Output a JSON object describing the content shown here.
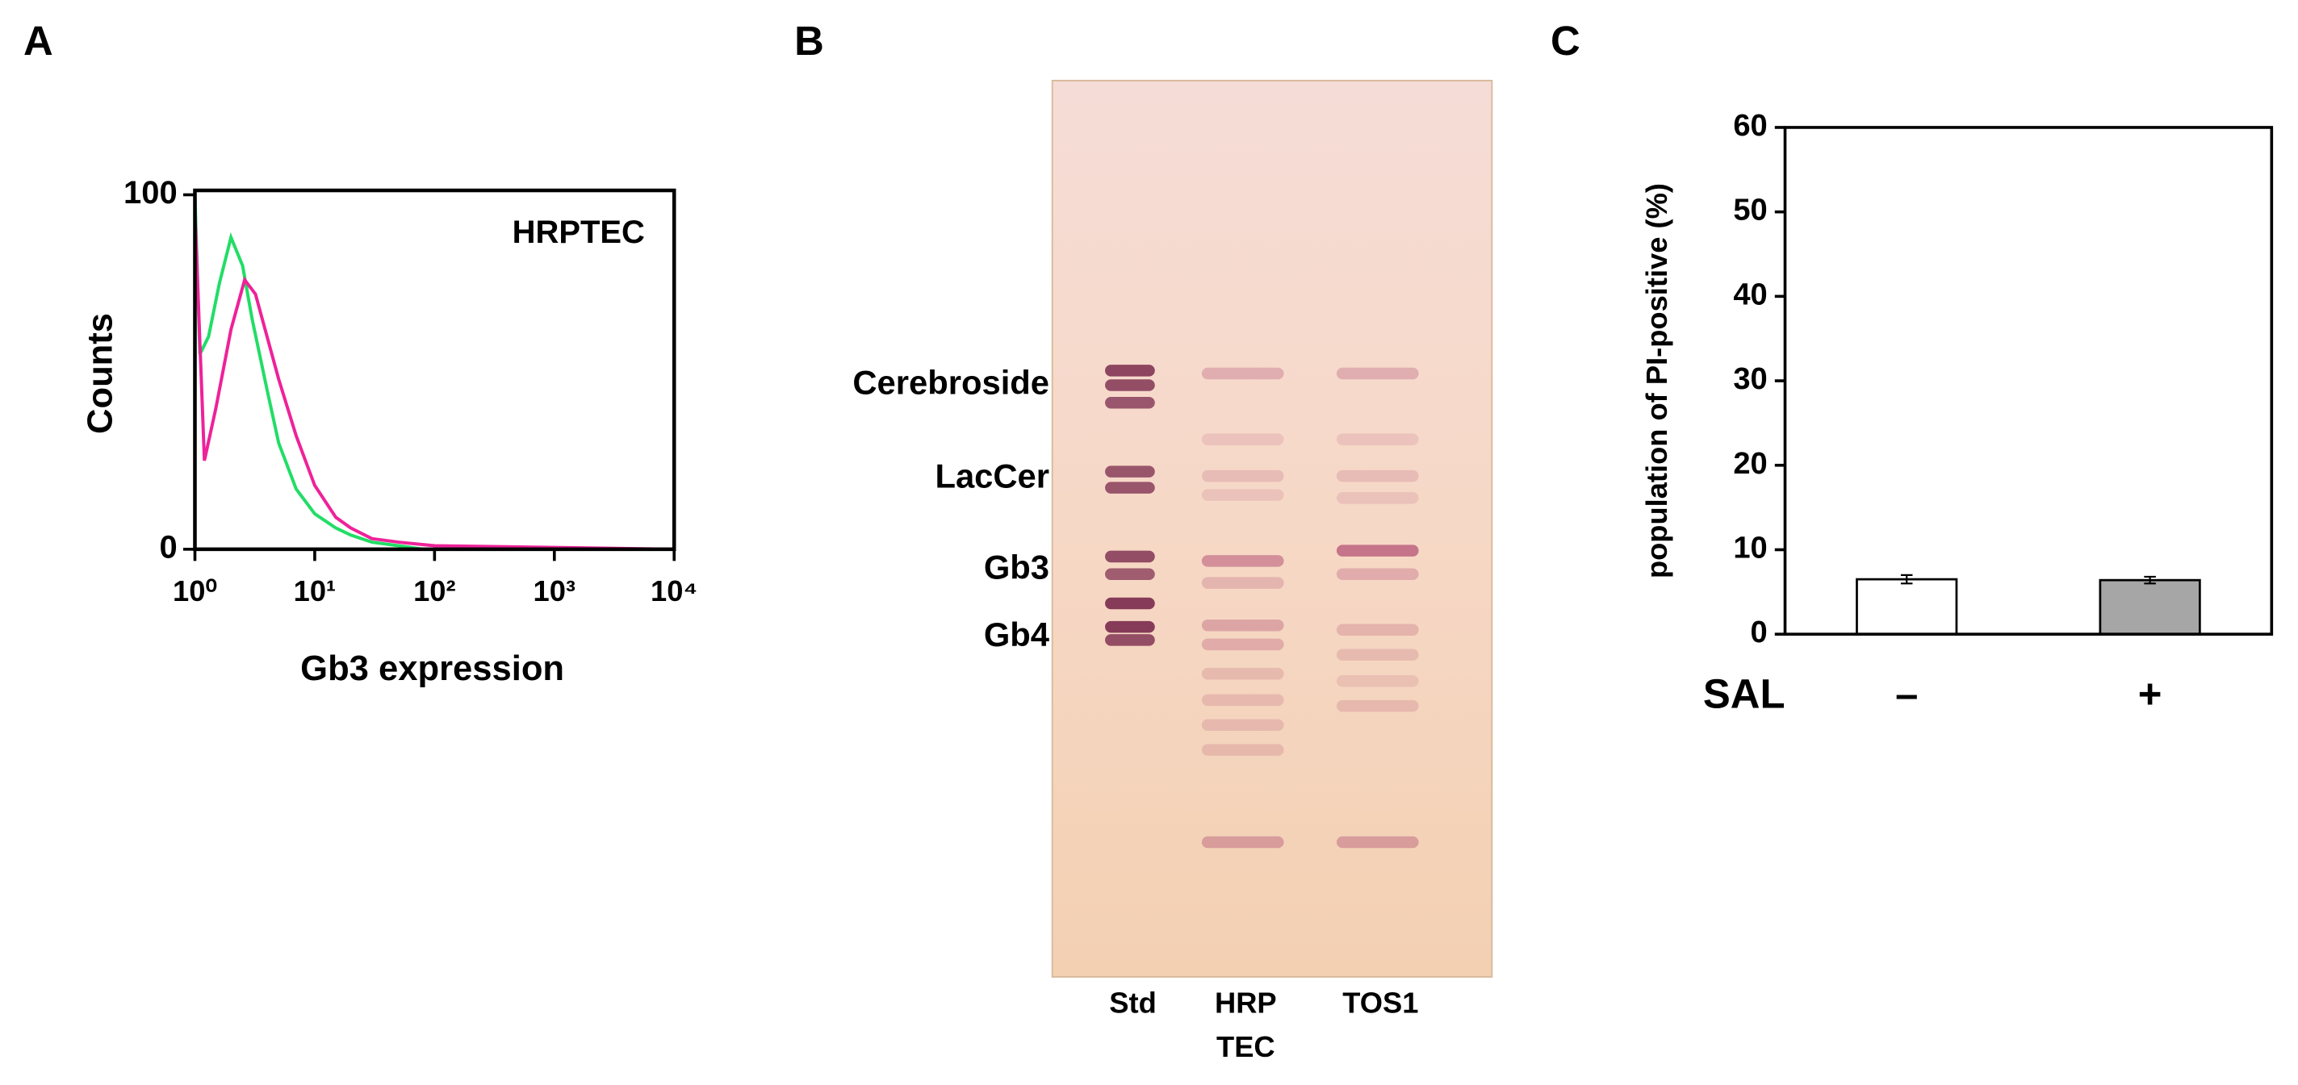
{
  "panels": [
    "A",
    "B",
    "C"
  ],
  "chart_data": [
    {
      "type": "line",
      "annotation": "HRPTEC",
      "xlabel": "Gb3 expression",
      "ylabel": "Counts",
      "xscale": "log",
      "xlim": [
        1,
        10000
      ],
      "ylim": [
        0,
        100
      ],
      "xticks": [
        {
          "value": 1,
          "label": "10⁰"
        },
        {
          "value": 10,
          "label": "10¹"
        },
        {
          "value": 100,
          "label": "10²"
        },
        {
          "value": 1000,
          "label": "10³"
        },
        {
          "value": 10000,
          "label": "10⁴"
        }
      ],
      "yticks": [
        0,
        100
      ],
      "series": [
        {
          "color": "#22dd66",
          "x": [
            1,
            1.1,
            1.3,
            1.6,
            2,
            2.5,
            3,
            4,
            5,
            7,
            10,
            15,
            20,
            30,
            50,
            80
          ],
          "values": [
            100,
            55,
            60,
            75,
            88,
            80,
            65,
            45,
            30,
            17,
            10,
            6,
            4,
            2,
            1,
            0
          ]
        },
        {
          "color": "#ee2299",
          "x": [
            1,
            1.2,
            1.5,
            2,
            2.6,
            3.2,
            4,
            5,
            7,
            10,
            15,
            20,
            30,
            50,
            100,
            1000,
            10000
          ],
          "values": [
            95,
            25,
            40,
            62,
            76,
            72,
            60,
            48,
            32,
            18,
            9,
            6,
            3,
            2,
            1,
            0.5,
            0
          ]
        }
      ]
    },
    {
      "type": "image",
      "band_labels": [
        "Cerebroside",
        "LacCer",
        "Gb3",
        "Gb4"
      ],
      "lane_labels": [
        "Std",
        "HRP\nTEC",
        "TOS1"
      ]
    },
    {
      "type": "bar",
      "ylabel": "population of PI-positive (%)",
      "xlabel": "SAL",
      "categories": [
        "–",
        "+"
      ],
      "values": [
        6.5,
        6.4
      ],
      "errors": [
        0.5,
        0.4
      ],
      "colors": [
        "#ffffff",
        "#a6a6a6"
      ],
      "ylim": [
        0,
        60
      ],
      "yticks": [
        0,
        10,
        20,
        30,
        40,
        50,
        60
      ]
    }
  ]
}
